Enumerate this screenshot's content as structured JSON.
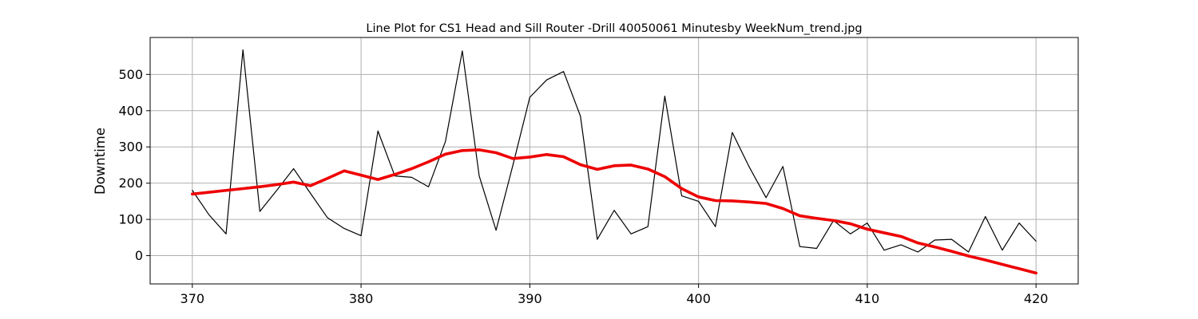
{
  "chart_data": {
    "type": "line",
    "title": "Line Plot for CS1 Head and Sill Router -Drill 40050061 Minutesby WeekNum_trend.jpg",
    "xlabel": "",
    "ylabel": "Downtime",
    "xlim": [
      367.5,
      422.5
    ],
    "ylim": [
      -78,
      602
    ],
    "x_ticks": [
      370,
      380,
      390,
      400,
      410,
      420
    ],
    "y_ticks": [
      0,
      100,
      200,
      300,
      400,
      500
    ],
    "grid": true,
    "series": [
      {
        "role": "data",
        "color": "#000000",
        "x": [
          370,
          371,
          372,
          373,
          374,
          375,
          376,
          377,
          378,
          379,
          380,
          381,
          382,
          383,
          384,
          385,
          386,
          387,
          388,
          389,
          390,
          391,
          392,
          393,
          394,
          395,
          396,
          397,
          398,
          399,
          400,
          401,
          402,
          403,
          404,
          405,
          406,
          407,
          408,
          409,
          410,
          411,
          412,
          413,
          414,
          415,
          416,
          417,
          418,
          419,
          420
        ],
        "y": [
          180,
          112,
          60,
          568,
          122,
          180,
          240,
          172,
          105,
          75,
          55,
          344,
          220,
          216,
          190,
          315,
          565,
          220,
          70,
          250,
          437,
          485,
          508,
          385,
          45,
          125,
          60,
          80,
          440,
          165,
          150,
          80,
          340,
          245,
          160,
          246,
          25,
          20,
          97,
          60,
          90,
          15,
          30,
          10,
          43,
          45,
          10,
          108,
          15,
          90,
          40
        ]
      },
      {
        "role": "trend",
        "color": "#ee0000",
        "x": [
          370,
          371,
          372,
          373,
          374,
          375,
          376,
          377,
          378,
          379,
          380,
          381,
          382,
          383,
          384,
          385,
          386,
          387,
          388,
          389,
          390,
          391,
          392,
          393,
          394,
          395,
          396,
          397,
          398,
          399,
          400,
          401,
          402,
          403,
          404,
          405,
          406,
          407,
          408,
          409,
          410,
          411,
          412,
          413,
          414,
          415,
          416,
          417,
          418,
          419,
          420
        ],
        "y": [
          170,
          175,
          180,
          185,
          190,
          196,
          203,
          193,
          213,
          234,
          222,
          210,
          224,
          240,
          259,
          280,
          290,
          292,
          284,
          268,
          272,
          279,
          273,
          251,
          238,
          248,
          250,
          239,
          218,
          185,
          162,
          152,
          151,
          148,
          144,
          130,
          110,
          103,
          97,
          88,
          73,
          63,
          53,
          35,
          24,
          12,
          -1,
          -12,
          -24,
          -36,
          -48
        ]
      }
    ]
  }
}
